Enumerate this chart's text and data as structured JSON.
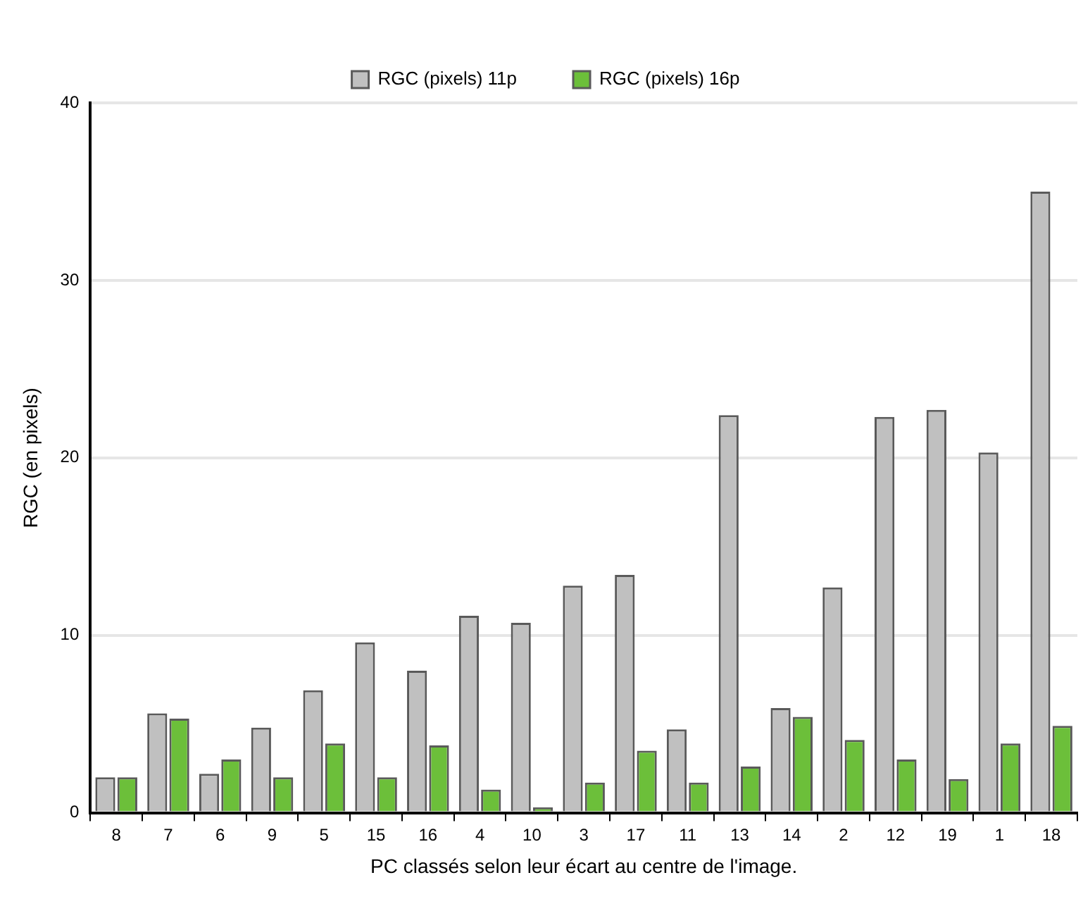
{
  "chart_data": {
    "type": "bar",
    "xlabel": "PC classés selon leur écart au centre de l'image.",
    "ylabel": "RGC (en pixels)",
    "categories": [
      "8",
      "7",
      "6",
      "9",
      "5",
      "15",
      "16",
      "4",
      "10",
      "3",
      "17",
      "11",
      "13",
      "14",
      "2",
      "12",
      "19",
      "1",
      "18"
    ],
    "series": [
      {
        "name": "RGC (pixels) 11p",
        "color": "#c0c0c0",
        "values": [
          2.0,
          5.6,
          2.2,
          4.8,
          6.9,
          9.6,
          8.0,
          11.1,
          10.7,
          12.8,
          13.4,
          4.7,
          22.4,
          5.9,
          12.7,
          22.3,
          22.7,
          20.3,
          35.0
        ]
      },
      {
        "name": "RGC (pixels) 16p",
        "color": "#6cbf3a",
        "values": [
          2.0,
          5.3,
          3.0,
          2.0,
          3.9,
          2.0,
          3.8,
          1.3,
          0.3,
          1.7,
          3.5,
          1.7,
          2.6,
          5.4,
          4.1,
          3.0,
          1.9,
          3.9,
          4.9
        ]
      }
    ],
    "ylim": [
      0,
      40
    ],
    "yticks": [
      0,
      10,
      20,
      30,
      40
    ],
    "grid": "y",
    "legend": "top"
  }
}
